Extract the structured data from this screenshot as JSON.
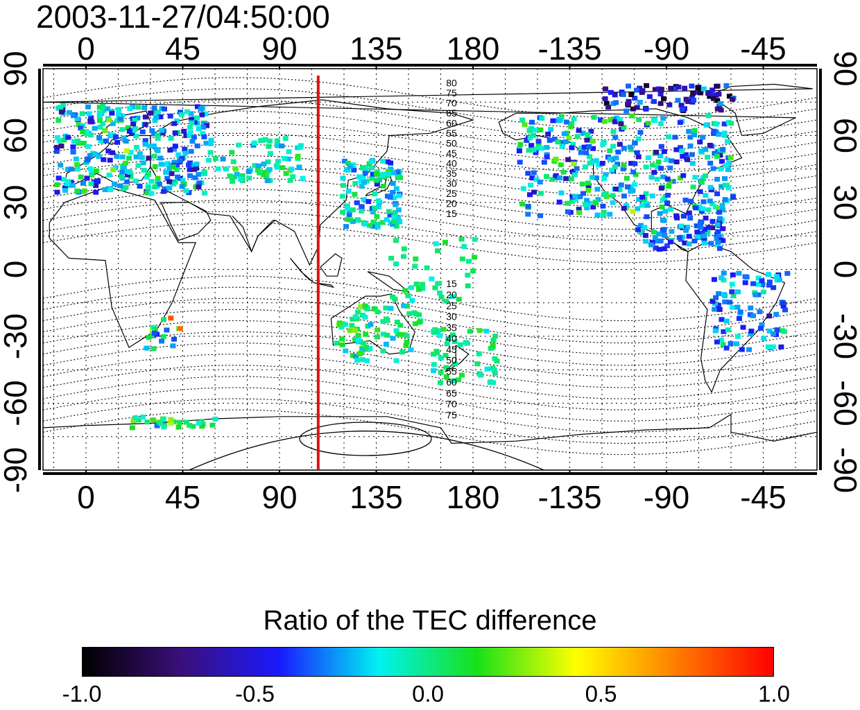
{
  "timestamp": "2003-11-27/04:50:00",
  "map": {
    "lon_ticks": [
      "0",
      "45",
      "90",
      "135",
      "180",
      "-135",
      "-90",
      "-45"
    ],
    "lat_ticks": [
      "90",
      "60",
      "30",
      "0",
      "-30",
      "-60",
      "-90"
    ],
    "contour_labels_north": [
      "80",
      "75",
      "70",
      "65",
      "60",
      "55",
      "50",
      "45",
      "40",
      "35",
      "30",
      "25",
      "20",
      "15"
    ],
    "contour_labels_south": [
      "15",
      "20",
      "25",
      "30",
      "35",
      "40",
      "45",
      "50",
      "55",
      "60",
      "65",
      "70",
      "75"
    ],
    "marker_line_lon": 108,
    "marker_line_color": "#dd1111",
    "lon_range": [
      -20,
      340
    ],
    "lat_range": [
      -90,
      90
    ]
  },
  "colorbar": {
    "title": "Ratio of the TEC difference",
    "ticks": [
      "-1.0",
      "-0.5",
      "0.0",
      "0.5",
      "1.0"
    ],
    "range": [
      -1.0,
      1.0
    ],
    "stops": [
      "#000000",
      "#3b0f7a",
      "#1a1aff",
      "#00f2f2",
      "#19e019",
      "#ffff00",
      "#ff7f00",
      "#ff0000"
    ]
  }
}
